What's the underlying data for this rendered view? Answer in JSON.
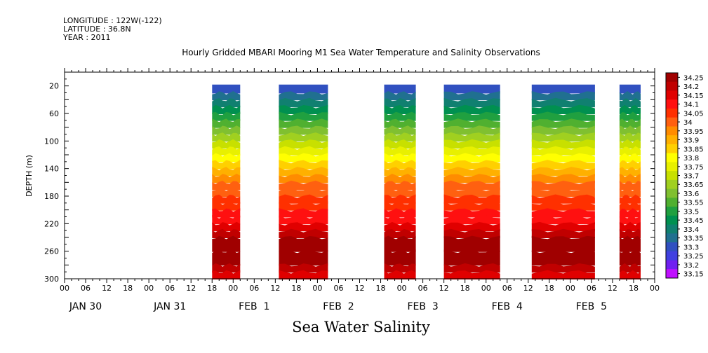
{
  "header": {
    "longitude": "LONGITUDE : 122W(-122)",
    "latitude": "LATITUDE : 36.8N",
    "year": "YEAR : 2011"
  },
  "chart_data": {
    "type": "heatmap",
    "title": "Hourly Gridded MBARI Mooring M1 Sea Water Temperature and Salinity Observations",
    "xlabel": "Sea Water Salinity",
    "ylabel": "DEPTH (m)",
    "x_hour_ticks": [
      "00",
      "06",
      "12",
      "18",
      "00",
      "06",
      "12",
      "18",
      "00",
      "06",
      "12",
      "18",
      "00",
      "06",
      "12",
      "18",
      "00",
      "06",
      "12",
      "18",
      "00",
      "06",
      "12",
      "18",
      "00",
      "06",
      "12",
      "18",
      "00"
    ],
    "x_day_labels": [
      "JAN 30",
      "JAN 31",
      "FEB  1",
      "FEB  2",
      "FEB  3",
      "FEB  4",
      "FEB  5"
    ],
    "xlim_hours": [
      0,
      168
    ],
    "y_ticks": [
      20,
      60,
      100,
      140,
      180,
      220,
      260,
      300
    ],
    "ylim": [
      300,
      0
    ],
    "colorbar_levels": [
      "34.25",
      "34.2",
      "34.15",
      "34.1",
      "34.05",
      "34",
      "33.95",
      "33.9",
      "33.85",
      "33.8",
      "33.75",
      "33.7",
      "33.65",
      "33.6",
      "33.55",
      "33.5",
      "33.45",
      "33.4",
      "33.35",
      "33.3",
      "33.25",
      "33.2",
      "33.15"
    ],
    "colorbar_colors": [
      "#a00000",
      "#c00000",
      "#e00000",
      "#ff1010",
      "#ff3000",
      "#ff6010",
      "#ff8c00",
      "#ffb000",
      "#ffd000",
      "#ffff00",
      "#e8f000",
      "#c8e000",
      "#a0d020",
      "#80c030",
      "#50b030",
      "#20a040",
      "#009050",
      "#108070",
      "#207090",
      "#3050c0",
      "#4040e0",
      "#7020f0",
      "#c010ff"
    ],
    "data_segments_hours": [
      [
        42,
        50
      ],
      [
        61,
        75
      ],
      [
        91,
        100
      ],
      [
        108,
        124
      ],
      [
        133,
        151
      ],
      [
        158,
        164
      ]
    ],
    "profile": {
      "depths": [
        18,
        30,
        40,
        50,
        60,
        70,
        80,
        90,
        100,
        110,
        120,
        130,
        140,
        150,
        160,
        170,
        180,
        190,
        200,
        210,
        220,
        230,
        240,
        260,
        280,
        290,
        300
      ],
      "salinity": [
        33.3,
        33.35,
        33.4,
        33.45,
        33.5,
        33.55,
        33.6,
        33.65,
        33.7,
        33.75,
        33.8,
        33.85,
        33.9,
        33.95,
        34.0,
        34.0,
        34.05,
        34.05,
        34.1,
        34.1,
        34.15,
        34.2,
        34.25,
        34.25,
        34.2,
        34.15,
        34.15
      ]
    }
  }
}
